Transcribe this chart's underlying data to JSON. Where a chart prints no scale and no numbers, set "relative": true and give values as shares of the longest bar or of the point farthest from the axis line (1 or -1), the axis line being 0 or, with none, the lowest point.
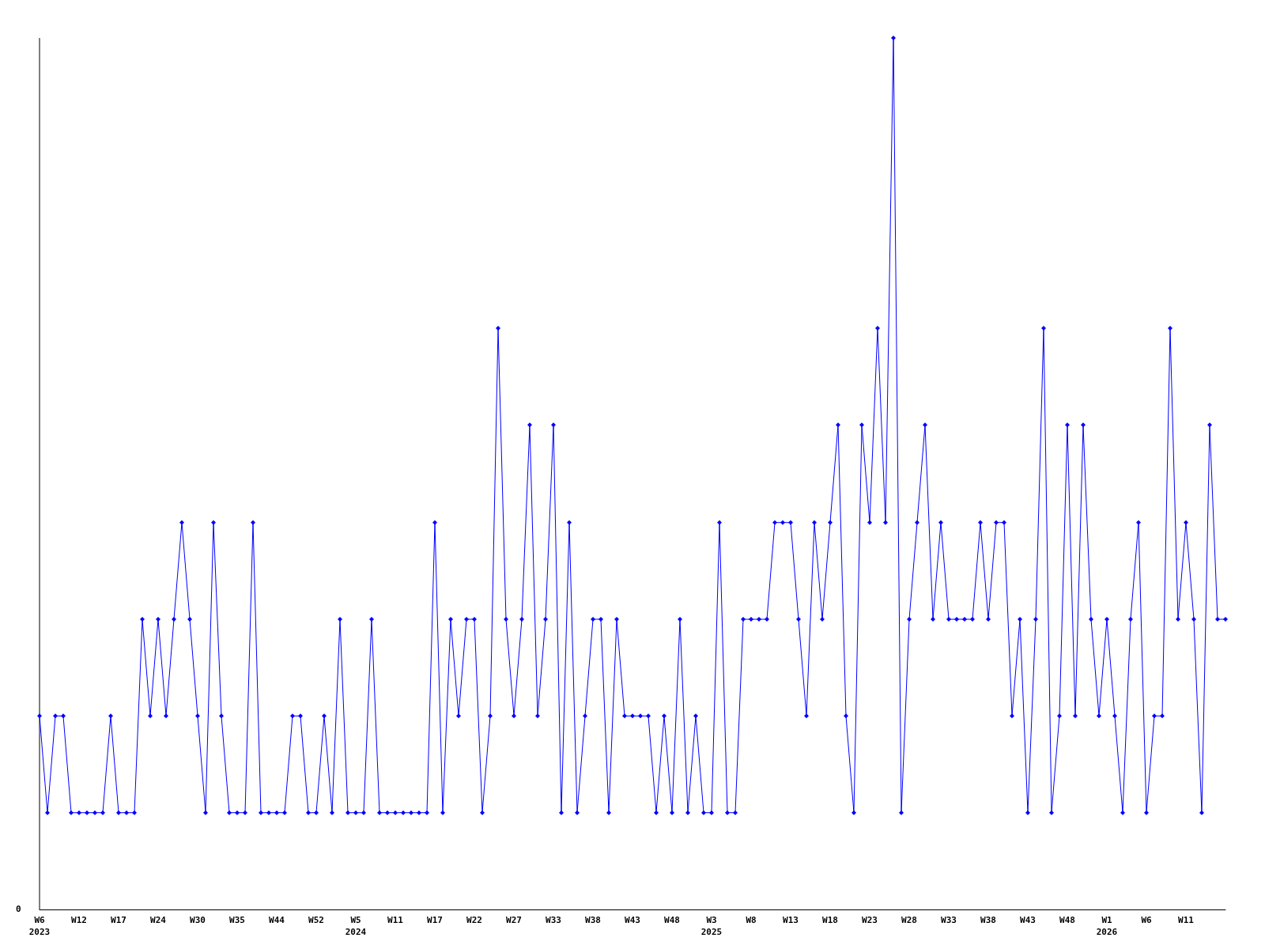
{
  "chart_data": {
    "type": "line",
    "relative": true,
    "marker": "diamond",
    "color": "#0000ff",
    "annotations": [
      "0"
    ],
    "categories": [
      "W6\n2023",
      null,
      null,
      null,
      null,
      "W12",
      null,
      null,
      null,
      null,
      "W17",
      null,
      null,
      null,
      null,
      "W24",
      null,
      null,
      null,
      null,
      "W30",
      null,
      null,
      null,
      null,
      "W35",
      null,
      null,
      null,
      null,
      "W44",
      null,
      null,
      null,
      null,
      "W52",
      null,
      null,
      null,
      null,
      "W5\n2024",
      null,
      null,
      null,
      null,
      "W11",
      null,
      null,
      null,
      null,
      "W17",
      null,
      null,
      null,
      null,
      "W22",
      null,
      null,
      null,
      null,
      "W27",
      null,
      null,
      null,
      null,
      "W33",
      null,
      null,
      null,
      null,
      "W38",
      null,
      null,
      null,
      null,
      "W43",
      null,
      null,
      null,
      null,
      "W48",
      null,
      null,
      null,
      null,
      "W3\n2025",
      null,
      null,
      null,
      null,
      "W8",
      null,
      null,
      null,
      null,
      "W13",
      null,
      null,
      null,
      null,
      "W18",
      null,
      null,
      null,
      null,
      "W23",
      null,
      null,
      null,
      null,
      "W28",
      null,
      null,
      null,
      null,
      "W33",
      null,
      null,
      null,
      null,
      "W38",
      null,
      null,
      null,
      null,
      "W43",
      null,
      null,
      null,
      null,
      "W48",
      null,
      null,
      null,
      null,
      "W1\n2026",
      null,
      null,
      null,
      null,
      "W6",
      null,
      null,
      null,
      null,
      "W11",
      null,
      null,
      null,
      null,
      null
    ],
    "values": [
      0.222,
      0.111,
      0.222,
      0.222,
      0.111,
      0.111,
      0.111,
      0.111,
      0.111,
      0.222,
      0.111,
      0.111,
      0.111,
      0.333,
      0.222,
      0.333,
      0.222,
      0.333,
      0.444,
      0.333,
      0.222,
      0.111,
      0.444,
      0.222,
      0.111,
      0.111,
      0.111,
      0.444,
      0.111,
      0.111,
      0.111,
      0.111,
      0.222,
      0.222,
      0.111,
      0.111,
      0.222,
      0.111,
      0.333,
      0.111,
      0.111,
      0.111,
      0.333,
      0.111,
      0.111,
      0.111,
      0.111,
      0.111,
      0.111,
      0.111,
      0.444,
      0.111,
      0.333,
      0.222,
      0.333,
      0.333,
      0.111,
      0.222,
      0.667,
      0.333,
      0.222,
      0.333,
      0.556,
      0.222,
      0.333,
      0.556,
      0.111,
      0.444,
      0.111,
      0.222,
      0.333,
      0.333,
      0.111,
      0.333,
      0.222,
      0.222,
      0.222,
      0.222,
      0.111,
      0.222,
      0.111,
      0.333,
      0.111,
      0.222,
      0.111,
      0.111,
      0.444,
      0.111,
      0.111,
      0.333,
      0.333,
      0.333,
      0.333,
      0.444,
      0.444,
      0.444,
      0.333,
      0.222,
      0.444,
      0.333,
      0.444,
      0.556,
      0.222,
      0.111,
      0.556,
      0.444,
      0.667,
      0.444,
      1,
      0.111,
      0.333,
      0.444,
      0.556,
      0.333,
      0.444,
      0.333,
      0.333,
      0.333,
      0.333,
      0.444,
      0.333,
      0.444,
      0.444,
      0.222,
      0.333,
      0.111,
      0.333,
      0.667,
      0.111,
      0.222,
      0.556,
      0.222,
      0.556,
      0.333,
      0.222,
      0.333,
      0.222,
      0.111,
      0.333,
      0.444,
      0.111,
      0.222,
      0.222,
      0.667,
      0.333,
      0.444,
      0.333,
      0.111,
      0.556,
      0.333,
      0.333
    ]
  }
}
